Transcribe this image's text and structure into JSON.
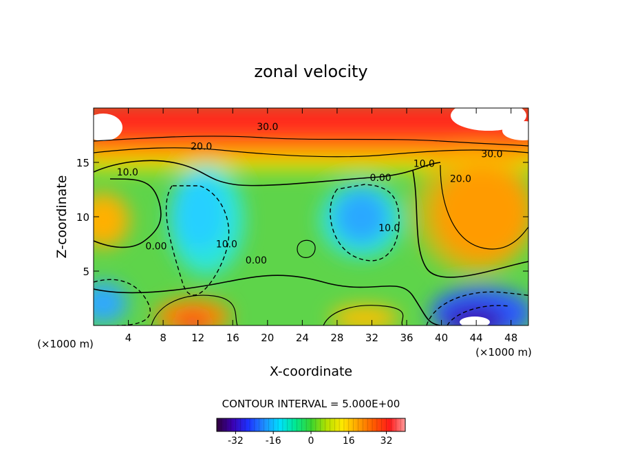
{
  "chart_data": {
    "type": "contour",
    "title": "zonal velocity",
    "xlabel": "X-coordinate",
    "ylabel": "Z-coordinate",
    "x_unit_label_left": "(×1000 m)",
    "x_unit_label_right": "(×1000 m)",
    "xlim": [
      0,
      50
    ],
    "ylim": [
      0,
      20
    ],
    "x_ticks": [
      4,
      8,
      12,
      16,
      20,
      24,
      28,
      32,
      36,
      40,
      44,
      48
    ],
    "y_ticks": [
      5,
      10,
      15
    ],
    "contour_interval_text": "CONTOUR INTERVAL = 5.000E+00",
    "colorbar": {
      "range": [
        -40,
        40
      ],
      "ticks": [
        -32,
        -16,
        0,
        16,
        32
      ],
      "colors": [
        "#30003a",
        "#3b00b0",
        "#1d32ff",
        "#1e8cff",
        "#00e0ff",
        "#00e890",
        "#39d42f",
        "#b4e000",
        "#ffe800",
        "#ffa000",
        "#ff5a00",
        "#ff1a1a",
        "#ff9a9a"
      ]
    },
    "contour_labels": [
      {
        "text": "30.0",
        "x": 20,
        "y": 18.3
      },
      {
        "text": "20.0",
        "x": 12.4,
        "y": 16.5
      },
      {
        "text": "10.0",
        "x": 3.9,
        "y": 14.1
      },
      {
        "text": "30.0",
        "x": 45.8,
        "y": 15.8
      },
      {
        "text": "10.0",
        "x": 38.0,
        "y": 14.9
      },
      {
        "text": "20.0",
        "x": 42.2,
        "y": 13.5
      },
      {
        "text": "0.00",
        "x": 33.0,
        "y": 13.6
      },
      {
        "text": "0.00",
        "x": 7.2,
        "y": 7.3
      },
      {
        "text": "10.0",
        "x": 15.3,
        "y": 7.5
      },
      {
        "text": "0.00",
        "x": 18.7,
        "y": 6.0
      },
      {
        "text": "10.0",
        "x": 34.0,
        "y": 9.0
      }
    ]
  }
}
